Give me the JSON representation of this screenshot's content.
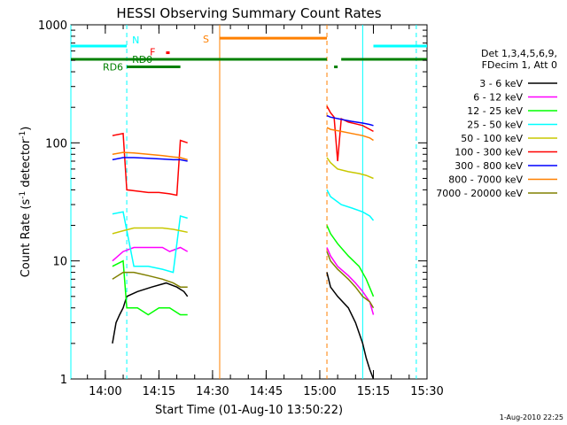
{
  "chart_data": {
    "type": "line",
    "title": "HESSI Observing Summary Count Rates",
    "xlabel": "Start Time (01-Aug-10 13:50:22)",
    "ylabel": "Count Rate (s⁻¹ detector⁻¹)",
    "ylabel_parts": [
      "Count Rate (s",
      "-1",
      " detector",
      "-1",
      ")"
    ],
    "yscale": "log",
    "ylim": [
      1,
      1000
    ],
    "xlim": [
      "13:50:22",
      "15:30:00"
    ],
    "xticks": [
      "14:00",
      "14:15",
      "14:30",
      "14:45",
      "15:00",
      "15:15",
      "15:30"
    ],
    "yticks": [
      "1",
      "10",
      "100",
      "1000"
    ],
    "legend_header": [
      "Det 1,3,4,5,6,9,",
      "FDecim 1, Att 0"
    ],
    "legend_position": "right",
    "timestamp": "1-Aug-2010 22:25",
    "series": [
      {
        "name": "3 - 6 keV",
        "color": "#000000",
        "points": [
          [
            "14:02",
            2
          ],
          [
            "14:03",
            3
          ],
          [
            "14:04",
            3.5
          ],
          [
            "14:05",
            4
          ],
          [
            "14:06",
            5
          ],
          [
            "14:09",
            5.5
          ],
          [
            "14:13",
            6
          ],
          [
            "14:17",
            6.5
          ],
          [
            "14:20",
            6
          ],
          [
            "14:22",
            5.5
          ],
          [
            "14:23",
            5
          ],
          null,
          [
            "15:02",
            8
          ],
          [
            "15:03",
            6
          ],
          [
            "15:05",
            5
          ],
          [
            "15:08",
            4
          ],
          [
            "15:10",
            3
          ],
          [
            "15:12",
            2
          ],
          [
            "15:13",
            1.5
          ],
          [
            "15:14",
            1.2
          ],
          [
            "15:15",
            1
          ]
        ]
      },
      {
        "name": "6 - 12 keV",
        "color": "#ff00ff",
        "points": [
          [
            "14:02",
            10
          ],
          [
            "14:05",
            12
          ],
          [
            "14:08",
            13
          ],
          [
            "14:13",
            13
          ],
          [
            "14:16",
            13
          ],
          [
            "14:18",
            12
          ],
          [
            "14:21",
            13
          ],
          [
            "14:23",
            12
          ],
          null,
          [
            "15:02",
            13
          ],
          [
            "15:03",
            11
          ],
          [
            "15:05",
            9
          ],
          [
            "15:08",
            7.5
          ],
          [
            "15:10",
            6.5
          ],
          [
            "15:12",
            5.5
          ],
          [
            "15:14",
            4.5
          ],
          [
            "15:15",
            3.5
          ]
        ]
      },
      {
        "name": "12 - 25 keV",
        "color": "#00ff00",
        "points": [
          [
            "14:02",
            9
          ],
          [
            "14:05",
            10
          ],
          [
            "14:06",
            4
          ],
          [
            "14:09",
            4
          ],
          [
            "14:12",
            3.5
          ],
          [
            "14:15",
            4
          ],
          [
            "14:18",
            4
          ],
          [
            "14:21",
            3.5
          ],
          [
            "14:23",
            3.5
          ],
          null,
          [
            "15:02",
            20
          ],
          [
            "15:03",
            17
          ],
          [
            "15:05",
            14
          ],
          [
            "15:08",
            11
          ],
          [
            "15:11",
            9
          ],
          [
            "15:13",
            7
          ],
          [
            "15:15",
            5
          ]
        ]
      },
      {
        "name": "25 - 50 keV",
        "color": "#00ffff",
        "points": [
          [
            "14:02",
            25
          ],
          [
            "14:05",
            26
          ],
          [
            "14:08",
            9
          ],
          [
            "14:12",
            9
          ],
          [
            "14:16",
            8.5
          ],
          [
            "14:19",
            8
          ],
          [
            "14:21",
            24
          ],
          [
            "14:23",
            23
          ],
          null,
          [
            "15:02",
            40
          ],
          [
            "15:03",
            35
          ],
          [
            "15:06",
            30
          ],
          [
            "15:09",
            28
          ],
          [
            "15:12",
            26
          ],
          [
            "15:14",
            24
          ],
          [
            "15:15",
            22
          ]
        ]
      },
      {
        "name": "50 - 100 keV",
        "color": "#c8c800",
        "points": [
          [
            "14:02",
            17
          ],
          [
            "14:05",
            18
          ],
          [
            "14:08",
            19
          ],
          [
            "14:12",
            19
          ],
          [
            "14:16",
            19
          ],
          [
            "14:19",
            18.5
          ],
          [
            "14:21",
            18
          ],
          [
            "14:23",
            17.5
          ],
          null,
          [
            "15:02",
            75
          ],
          [
            "15:03",
            68
          ],
          [
            "15:05",
            60
          ],
          [
            "15:08",
            57
          ],
          [
            "15:11",
            55
          ],
          [
            "15:13",
            53
          ],
          [
            "15:15",
            50
          ]
        ]
      },
      {
        "name": "100 - 300 keV",
        "color": "#ff0000",
        "points": [
          [
            "14:02",
            115
          ],
          [
            "14:05",
            120
          ],
          [
            "14:06",
            40
          ],
          [
            "14:09",
            39
          ],
          [
            "14:12",
            38
          ],
          [
            "14:15",
            38
          ],
          [
            "14:18",
            37
          ],
          [
            "14:20",
            36
          ],
          [
            "14:21",
            105
          ],
          [
            "14:23",
            100
          ],
          null,
          [
            "15:02",
            205
          ],
          [
            "15:03",
            180
          ],
          [
            "15:04",
            165
          ],
          [
            "15:05",
            70
          ],
          [
            "15:06",
            160
          ],
          [
            "15:08",
            150
          ],
          [
            "15:10",
            145
          ],
          [
            "15:12",
            140
          ],
          [
            "15:14",
            130
          ],
          [
            "15:15",
            125
          ]
        ]
      },
      {
        "name": "300 - 800 keV",
        "color": "#0000ff",
        "points": [
          [
            "14:02",
            72
          ],
          [
            "14:05",
            75
          ],
          [
            "14:08",
            75
          ],
          [
            "14:12",
            74
          ],
          [
            "14:16",
            73
          ],
          [
            "14:19",
            72
          ],
          [
            "14:21",
            72
          ],
          [
            "14:23",
            70
          ],
          null,
          [
            "15:02",
            170
          ],
          [
            "15:03",
            165
          ],
          [
            "15:06",
            158
          ],
          [
            "15:09",
            152
          ],
          [
            "15:12",
            147
          ],
          [
            "15:14",
            143
          ],
          [
            "15:15",
            140
          ]
        ]
      },
      {
        "name": "800 - 7000 keV",
        "color": "#ff8000",
        "points": [
          [
            "14:02",
            80
          ],
          [
            "14:05",
            83
          ],
          [
            "14:08",
            82
          ],
          [
            "14:12",
            80
          ],
          [
            "14:16",
            78
          ],
          [
            "14:19",
            76
          ],
          [
            "14:21",
            75
          ],
          [
            "14:23",
            72
          ],
          null,
          [
            "15:02",
            135
          ],
          [
            "15:03",
            130
          ],
          [
            "15:06",
            125
          ],
          [
            "15:09",
            120
          ],
          [
            "15:12",
            115
          ],
          [
            "15:14",
            110
          ],
          [
            "15:15",
            105
          ]
        ]
      },
      {
        "name": "7000 - 20000 keV",
        "color": "#808000",
        "points": [
          [
            "14:02",
            7
          ],
          [
            "14:05",
            8
          ],
          [
            "14:08",
            8
          ],
          [
            "14:12",
            7.5
          ],
          [
            "14:16",
            7
          ],
          [
            "14:19",
            6.5
          ],
          [
            "14:21",
            6
          ],
          [
            "14:23",
            6
          ],
          null,
          [
            "15:02",
            12
          ],
          [
            "15:03",
            10
          ],
          [
            "15:05",
            8.5
          ],
          [
            "15:08",
            7
          ],
          [
            "15:10",
            6
          ],
          [
            "15:12",
            5
          ],
          [
            "15:14",
            4.5
          ],
          [
            "15:15",
            4
          ]
        ]
      }
    ],
    "flags": [
      {
        "label": "N",
        "color": "#00ffff",
        "level": 660,
        "segments": [
          [
            "13:50:22",
            "14:06"
          ],
          [
            "15:15",
            "15:30:00"
          ]
        ]
      },
      {
        "label": "S",
        "color": "#ff8000",
        "level": 770,
        "segments": [
          [
            "14:32",
            "15:02"
          ]
        ]
      },
      {
        "label": "F",
        "color": "#ff0000",
        "level": 580,
        "segments": [
          [
            "14:17",
            "14:18"
          ]
        ]
      },
      {
        "label": "RD0",
        "color": "#008000",
        "level": 510,
        "segments": [
          [
            "13:50:22",
            "15:02"
          ],
          [
            "15:06",
            "15:30:00"
          ]
        ]
      },
      {
        "label": "RD6",
        "color": "#008000",
        "level": 440,
        "segments": [
          [
            "14:06",
            "14:21"
          ],
          [
            "15:04",
            "15:05"
          ]
        ]
      }
    ],
    "markers": [
      {
        "time": "13:50:22",
        "color": "#00ffff",
        "style": "solid"
      },
      {
        "time": "14:06",
        "color": "#00ffff",
        "style": "dashed"
      },
      {
        "time": "14:32",
        "color": "#ff8000",
        "style": "solid"
      },
      {
        "time": "15:02",
        "color": "#ff8000",
        "style": "dashed"
      },
      {
        "time": "15:12",
        "color": "#00ffff",
        "style": "solid"
      },
      {
        "time": "15:27",
        "color": "#00ffff",
        "style": "dashed"
      }
    ]
  }
}
